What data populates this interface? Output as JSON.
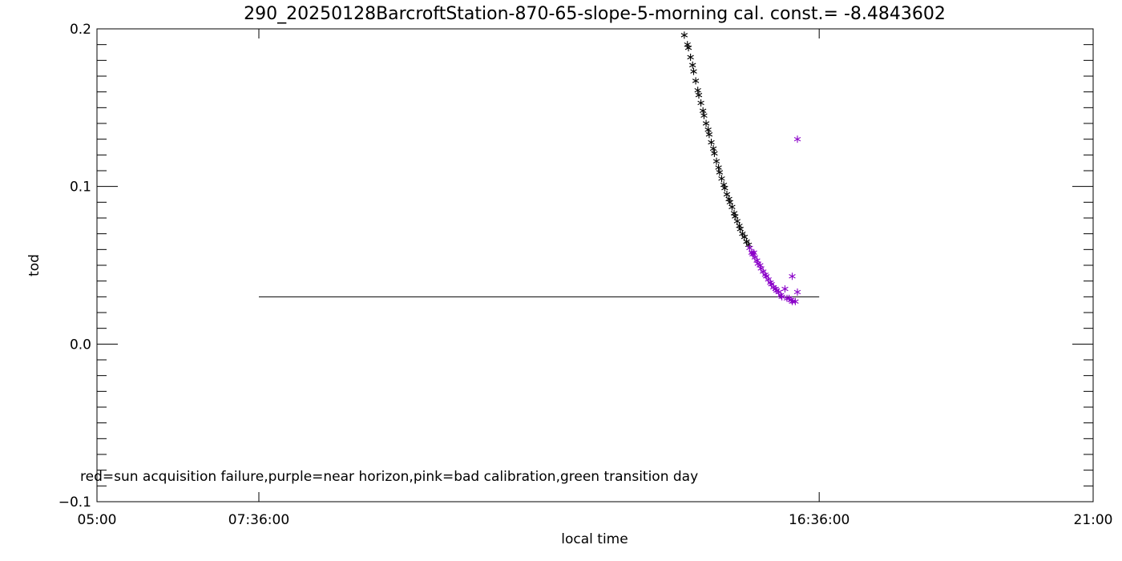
{
  "chart_data": {
    "type": "scatter",
    "title": "290_20250128BarcroftStation-870-65-slope-5-morning cal. const.= -8.4843602",
    "xlabel": "local time",
    "ylabel": "tod",
    "xlim": [
      "05:00",
      "21:00"
    ],
    "ylim": [
      -0.1,
      0.2
    ],
    "x_tick_labels": [
      "05:00",
      "07:36:00",
      "16:36:00",
      "21:00"
    ],
    "y_tick_labels": [
      "−0.1",
      "0.0",
      "0.1",
      "0.2"
    ],
    "annotation": "red=sun acquisition failure,purple=near horizon,pink=bad calibration,green transition day",
    "reference_line": {
      "x_start": "07:36",
      "x_end": "16:36",
      "y": 0.03
    },
    "marker": "asterisk",
    "colors": {
      "normal": "#000000",
      "near_horizon": "#8a00c8"
    },
    "series": [
      {
        "category": "normal",
        "points": [
          [
            "14:26",
            0.196
          ],
          [
            "14:29",
            0.19
          ],
          [
            "14:30",
            0.188
          ],
          [
            "14:32",
            0.182
          ],
          [
            "14:34",
            0.177
          ],
          [
            "14:35",
            0.173
          ],
          [
            "14:37",
            0.167
          ],
          [
            "14:39",
            0.161
          ],
          [
            "14:40",
            0.158
          ],
          [
            "14:42",
            0.153
          ],
          [
            "14:44",
            0.148
          ],
          [
            "14:45",
            0.145
          ],
          [
            "14:47",
            0.14
          ],
          [
            "14:49",
            0.136
          ],
          [
            "14:50",
            0.133
          ],
          [
            "14:52",
            0.128
          ],
          [
            "14:54",
            0.124
          ],
          [
            "14:55",
            0.121
          ],
          [
            "14:57",
            0.116
          ],
          [
            "14:59",
            0.112
          ],
          [
            "15:00",
            0.109
          ],
          [
            "15:02",
            0.105
          ],
          [
            "15:04",
            0.101
          ],
          [
            "15:05",
            0.099
          ],
          [
            "15:07",
            0.095
          ],
          [
            "15:09",
            0.092
          ],
          [
            "15:10",
            0.09
          ],
          [
            "15:12",
            0.087
          ],
          [
            "15:14",
            0.083
          ],
          [
            "15:15",
            0.081
          ],
          [
            "15:17",
            0.078
          ],
          [
            "15:19",
            0.075
          ],
          [
            "15:20",
            0.073
          ],
          [
            "15:22",
            0.07
          ],
          [
            "15:24",
            0.068
          ],
          [
            "15:26",
            0.065
          ],
          [
            "15:28",
            0.063
          ]
        ]
      },
      {
        "category": "near_horizon",
        "points": [
          [
            "15:29",
            0.061
          ],
          [
            "15:31",
            0.058
          ],
          [
            "15:32",
            0.057
          ],
          [
            "15:33",
            0.058
          ],
          [
            "15:34",
            0.055
          ],
          [
            "15:36",
            0.053
          ],
          [
            "15:37",
            0.051
          ],
          [
            "15:39",
            0.05
          ],
          [
            "15:40",
            0.048
          ],
          [
            "15:42",
            0.046
          ],
          [
            "15:44",
            0.044
          ],
          [
            "15:45",
            0.043
          ],
          [
            "15:47",
            0.041
          ],
          [
            "15:49",
            0.039
          ],
          [
            "15:50",
            0.038
          ],
          [
            "15:52",
            0.036
          ],
          [
            "15:54",
            0.035
          ],
          [
            "15:55",
            0.034
          ],
          [
            "15:57",
            0.033
          ],
          [
            "15:59",
            0.031
          ],
          [
            "16:00",
            0.03
          ],
          [
            "16:03",
            0.035
          ],
          [
            "16:05",
            0.029
          ],
          [
            "16:07",
            0.029
          ],
          [
            "16:09",
            0.028
          ],
          [
            "16:10",
            0.027
          ],
          [
            "16:10",
            0.043
          ],
          [
            "16:13",
            0.027
          ],
          [
            "16:15",
            0.033
          ],
          [
            "16:15",
            0.13
          ]
        ]
      }
    ]
  }
}
